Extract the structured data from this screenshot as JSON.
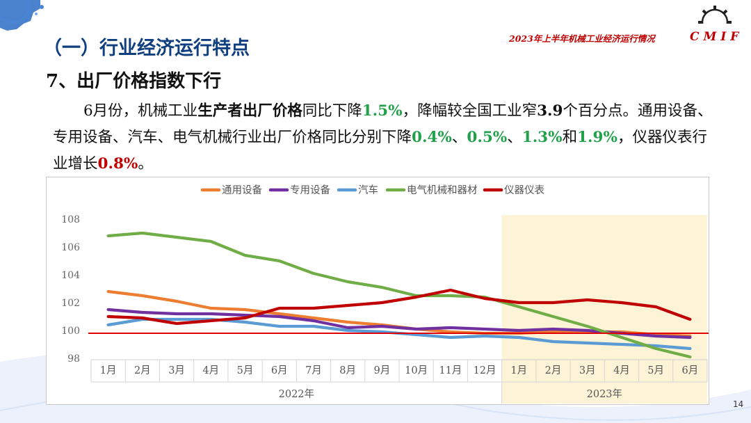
{
  "header": {
    "section_title": "（一）行业经济运行特点",
    "sub_title": "7、出厂价格指数下行",
    "report_title": "2023年上半年机械工业经济运行情况",
    "logo_text": "CMIF"
  },
  "paragraph": {
    "p1": "6月份，机械工业",
    "p2": "生产者出厂价格",
    "p3": "同比下降",
    "p4": "1.5%",
    "p5": "，降幅较全国工业窄",
    "p6": "3.9",
    "p7": "个百分点。通用设备、专用设备、汽车、电气机械行业出厂价格同比分别下降",
    "p8": "0.4%",
    "p9": "、",
    "p10": "0.5%",
    "p11": "、",
    "p12": "1.3%",
    "p13": "和",
    "p14": "1.9%",
    "p15": "，仪器仪表行业增长",
    "p16": "0.8%",
    "p17": "。"
  },
  "page_number": "14",
  "colors": {
    "title_blue": "#0f3f7f",
    "accent_red": "#c00000",
    "highlight_green": "#22a04a",
    "highlight_band": "#fdf3d6"
  },
  "chart_data": {
    "type": "line",
    "categories": [
      "1月",
      "2月",
      "3月",
      "4月",
      "5月",
      "6月",
      "7月",
      "8月",
      "9月",
      "10月",
      "11月",
      "12月",
      "1月",
      "2月",
      "3月",
      "4月",
      "5月",
      "6月"
    ],
    "groups": [
      {
        "label": "2022年",
        "count": 12
      },
      {
        "label": "2023年",
        "count": 6
      }
    ],
    "highlight_group": "2023年",
    "ylim": [
      98,
      108
    ],
    "yticks": [
      98,
      100,
      102,
      104,
      106,
      108
    ],
    "reference_line": 99.8,
    "legend_position": "top",
    "grid": false,
    "series": [
      {
        "name": "通用设备",
        "color": "#ed7d31",
        "values": [
          102.8,
          102.5,
          102.1,
          101.6,
          101.5,
          101.2,
          100.9,
          100.6,
          100.4,
          100.1,
          99.9,
          99.8,
          99.8,
          99.9,
          99.9,
          99.9,
          99.7,
          99.6
        ]
      },
      {
        "name": "专用设备",
        "color": "#7030a0",
        "values": [
          101.5,
          101.3,
          101.2,
          101.2,
          101.1,
          101.0,
          100.7,
          100.2,
          100.3,
          100.1,
          100.2,
          100.1,
          100.0,
          100.1,
          100.0,
          99.8,
          99.6,
          99.5
        ]
      },
      {
        "name": "汽车",
        "color": "#5b9bd5",
        "values": [
          100.4,
          100.8,
          100.8,
          100.8,
          100.6,
          100.3,
          100.3,
          100.0,
          99.9,
          99.7,
          99.5,
          99.6,
          99.5,
          99.2,
          99.1,
          99.0,
          98.9,
          98.7
        ]
      },
      {
        "name": "电气机械和器材",
        "color": "#70ad47",
        "values": [
          106.8,
          107.0,
          106.7,
          106.4,
          105.4,
          105.0,
          104.1,
          103.5,
          103.1,
          102.5,
          102.5,
          102.4,
          101.7,
          101.0,
          100.3,
          99.5,
          98.7,
          98.1
        ]
      },
      {
        "name": "仪器仪表",
        "color": "#c00000",
        "values": [
          101.0,
          100.9,
          100.5,
          100.7,
          100.9,
          101.6,
          101.6,
          101.8,
          102.0,
          102.4,
          102.9,
          102.3,
          102.0,
          102.0,
          102.2,
          102.0,
          101.7,
          100.8
        ]
      }
    ]
  }
}
